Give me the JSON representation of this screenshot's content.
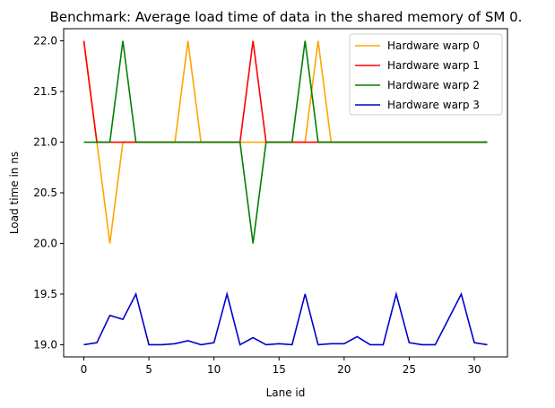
{
  "chart_data": {
    "type": "line",
    "title": "Benchmark: Average load time of data in the shared memory of SM 0.",
    "xlabel": "Lane id",
    "ylabel": "Load time in ns",
    "xlim": [
      -1.55,
      32.55
    ],
    "ylim": [
      18.88,
      22.12
    ],
    "xticks": [
      0,
      5,
      10,
      15,
      20,
      25,
      30
    ],
    "yticks": [
      19.0,
      19.5,
      20.0,
      20.5,
      21.0,
      21.5,
      22.0
    ],
    "ytick_labels": [
      "19.0",
      "19.5",
      "20.0",
      "20.5",
      "21.0",
      "21.5",
      "22.0"
    ],
    "grid": false,
    "legend_position": "top-right",
    "x": [
      0,
      1,
      2,
      3,
      4,
      5,
      6,
      7,
      8,
      9,
      10,
      11,
      12,
      13,
      14,
      15,
      16,
      17,
      18,
      19,
      20,
      21,
      22,
      23,
      24,
      25,
      26,
      27,
      28,
      29,
      30,
      31
    ],
    "series": [
      {
        "name": "Hardware warp 0",
        "color": "#ffa500",
        "values": [
          22.0,
          21.0,
          20.0,
          21.0,
          21.0,
          21.0,
          21.0,
          21.0,
          22.0,
          21.0,
          21.0,
          21.0,
          21.0,
          21.0,
          21.0,
          21.0,
          21.0,
          21.0,
          22.0,
          21.0,
          21.0,
          21.0,
          21.0,
          21.0,
          21.0,
          21.0,
          21.0,
          21.0,
          21.0,
          21.0,
          21.0,
          21.0
        ]
      },
      {
        "name": "Hardware warp 1",
        "color": "#ff0000",
        "values": [
          22.0,
          21.0,
          21.0,
          21.0,
          21.0,
          21.0,
          21.0,
          21.0,
          21.0,
          21.0,
          21.0,
          21.0,
          21.0,
          22.0,
          21.0,
          21.0,
          21.0,
          21.0,
          21.0,
          21.0,
          21.0,
          21.0,
          21.0,
          21.0,
          21.0,
          21.0,
          21.0,
          21.0,
          21.0,
          21.0,
          21.0,
          21.0
        ]
      },
      {
        "name": "Hardware warp 2",
        "color": "#008000",
        "values": [
          21.0,
          21.0,
          21.0,
          22.0,
          21.0,
          21.0,
          21.0,
          21.0,
          21.0,
          21.0,
          21.0,
          21.0,
          21.0,
          20.0,
          21.0,
          21.0,
          21.0,
          22.0,
          21.0,
          21.0,
          21.0,
          21.0,
          21.0,
          21.0,
          21.0,
          21.0,
          21.0,
          21.0,
          21.0,
          21.0,
          21.0,
          21.0
        ]
      },
      {
        "name": "Hardware warp 3",
        "color": "#0000cd",
        "values": [
          19.0,
          19.02,
          19.29,
          19.25,
          19.5,
          19.0,
          19.0,
          19.01,
          19.04,
          19.0,
          19.02,
          19.5,
          19.0,
          19.07,
          19.0,
          19.01,
          19.0,
          19.5,
          19.0,
          19.01,
          19.01,
          19.08,
          19.0,
          19.0,
          19.5,
          19.02,
          19.0,
          19.0,
          19.25,
          19.5,
          19.02,
          19.0
        ]
      }
    ]
  }
}
